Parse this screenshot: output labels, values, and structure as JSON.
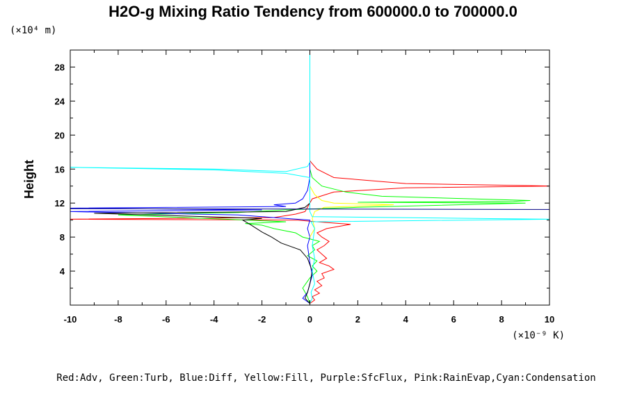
{
  "chart_data": {
    "type": "line",
    "title": "H2O-g Mixing Ratio Tendency from 600000.0 to 700000.0",
    "ylabel": "Height",
    "x_unit": "(×10⁻⁹ K)",
    "y_unit": "(×10⁴ m)",
    "xlim": [
      -10,
      10
    ],
    "ylim": [
      0,
      30
    ],
    "x_ticks": [
      -10,
      -8,
      -6,
      -4,
      -2,
      0,
      2,
      4,
      6,
      8,
      10
    ],
    "y_ticks": [
      4,
      8,
      12,
      16,
      20,
      24,
      28
    ],
    "legend_text": "Red:Adv, Green:Turb, Blue:Diff, Yellow:Fill, Purple:SfcFlux, Pink:RainEvap,Cyan:Condensation",
    "series": [
      {
        "color": "#ff0000",
        "points": [
          [
            0,
            0.2
          ],
          [
            0.2,
            0.6
          ],
          [
            0.1,
            1.0
          ],
          [
            0.4,
            1.4
          ],
          [
            0.2,
            1.8
          ],
          [
            0.5,
            2.3
          ],
          [
            0.3,
            2.8
          ],
          [
            0.6,
            3.2
          ],
          [
            0.5,
            3.7
          ],
          [
            1.0,
            4.2
          ],
          [
            0.8,
            4.6
          ],
          [
            0.4,
            5.0
          ],
          [
            0.7,
            5.5
          ],
          [
            0.5,
            6.0
          ],
          [
            0.3,
            6.5
          ],
          [
            0.6,
            7.0
          ],
          [
            0.8,
            7.5
          ],
          [
            0.5,
            8.0
          ],
          [
            0.3,
            8.5
          ],
          [
            0.7,
            9.0
          ],
          [
            1.7,
            9.5
          ],
          [
            0.3,
            9.8
          ],
          [
            -0.5,
            10.0
          ],
          [
            -10,
            10.1
          ],
          [
            -1.5,
            10.3
          ],
          [
            -0.6,
            10.7
          ],
          [
            -0.2,
            11.0
          ],
          [
            -0.1,
            11.5
          ],
          [
            0.1,
            12.5
          ],
          [
            1.0,
            13.3
          ],
          [
            4.0,
            13.8
          ],
          [
            10.2,
            14.0
          ],
          [
            4.0,
            14.3
          ],
          [
            1.0,
            15.0
          ],
          [
            0.3,
            16.0
          ],
          [
            0.05,
            16.8
          ],
          [
            0,
            17.0
          ],
          [
            0,
            30
          ]
        ]
      },
      {
        "color": "#00ff00",
        "points": [
          [
            0,
            0.2
          ],
          [
            -0.1,
            1.0
          ],
          [
            -0.3,
            2.0
          ],
          [
            -0.1,
            2.8
          ],
          [
            0,
            3.2
          ],
          [
            0.3,
            4.0
          ],
          [
            0.1,
            4.6
          ],
          [
            0.3,
            5.2
          ],
          [
            -0.1,
            5.8
          ],
          [
            0.2,
            6.5
          ],
          [
            0.1,
            7.0
          ],
          [
            0.4,
            7.5
          ],
          [
            -0.3,
            8.0
          ],
          [
            -0.6,
            8.5
          ],
          [
            -1.5,
            9.0
          ],
          [
            -2.0,
            9.4
          ],
          [
            -2.7,
            9.6
          ],
          [
            -1.0,
            9.8
          ],
          [
            -3.5,
            10.1
          ],
          [
            -8.0,
            10.6
          ],
          [
            -3.0,
            10.9
          ],
          [
            -1.0,
            11.2
          ],
          [
            2.0,
            11.5
          ],
          [
            9.0,
            12.0
          ],
          [
            2.0,
            12.1
          ],
          [
            8.5,
            12.2
          ],
          [
            9.2,
            12.3
          ],
          [
            3.0,
            12.8
          ],
          [
            1.5,
            13.3
          ],
          [
            0.5,
            14.0
          ],
          [
            0.1,
            15.0
          ],
          [
            0,
            16.0
          ],
          [
            0,
            30
          ]
        ]
      },
      {
        "color": "#0000ff",
        "points": [
          [
            0,
            0.2
          ],
          [
            -0.3,
            0.8
          ],
          [
            -0.1,
            1.5
          ],
          [
            0,
            2.5
          ],
          [
            0.1,
            3.5
          ],
          [
            0,
            5.0
          ],
          [
            -0.1,
            7.0
          ],
          [
            0,
            8.0
          ],
          [
            -0.1,
            9.0
          ],
          [
            0,
            10.0
          ],
          [
            -3.0,
            10.6
          ],
          [
            -10,
            11.0
          ],
          [
            -2.0,
            11.2
          ],
          [
            -10,
            11.4
          ],
          [
            -1.0,
            11.6
          ],
          [
            -1.5,
            11.8
          ],
          [
            -0.6,
            12.0
          ],
          [
            -0.3,
            12.5
          ],
          [
            -0.1,
            13.5
          ],
          [
            0,
            15.0
          ],
          [
            0,
            30
          ]
        ]
      },
      {
        "color": "#ffff00",
        "points": [
          [
            0,
            8.0
          ],
          [
            0.2,
            9.0
          ],
          [
            0.1,
            10.2
          ],
          [
            0.2,
            11.0
          ],
          [
            0.6,
            11.5
          ],
          [
            3.5,
            11.8
          ],
          [
            1.0,
            12.0
          ],
          [
            0.5,
            12.3
          ],
          [
            0.2,
            13.0
          ],
          [
            0,
            14.0
          ]
        ]
      },
      {
        "color": "#000000",
        "points": [
          [
            0,
            0.2
          ],
          [
            -0.2,
            0.8
          ],
          [
            -0.1,
            1.5
          ],
          [
            0,
            2.5
          ],
          [
            0.1,
            4.0
          ],
          [
            -0.1,
            5.5
          ],
          [
            -0.4,
            6.5
          ],
          [
            -1.2,
            7.3
          ],
          [
            -1.6,
            8.0
          ],
          [
            -2.0,
            8.6
          ],
          [
            -2.5,
            9.5
          ],
          [
            -2.8,
            10.0
          ],
          [
            -2.0,
            10.2
          ],
          [
            -9.0,
            10.8
          ],
          [
            -1.0,
            11.0
          ],
          [
            -0.2,
            11.5
          ],
          [
            0,
            12.0
          ]
        ]
      },
      {
        "color": "#00ffff",
        "points": [
          [
            0,
            0.2
          ],
          [
            0.1,
            0.8
          ],
          [
            0.05,
            1.5
          ],
          [
            0.2,
            2.5
          ],
          [
            0.1,
            4.0
          ],
          [
            0.2,
            5.5
          ],
          [
            0.1,
            7.0
          ],
          [
            0.2,
            9.0
          ],
          [
            0.05,
            9.8
          ],
          [
            10,
            10.1
          ],
          [
            0.1,
            10.4
          ],
          [
            0,
            11.0
          ],
          [
            0,
            15.0
          ],
          [
            -1.0,
            15.5
          ],
          [
            -4.0,
            15.9
          ],
          [
            -10,
            16.2
          ],
          [
            -4.0,
            16.0
          ],
          [
            -1.0,
            15.7
          ],
          [
            -0.1,
            16.3
          ],
          [
            0,
            16.8
          ],
          [
            0,
            30
          ]
        ]
      },
      {
        "color": "#000080",
        "points": [
          [
            -10,
            11.35
          ],
          [
            0,
            11.3
          ],
          [
            10,
            11.25
          ]
        ]
      }
    ]
  }
}
